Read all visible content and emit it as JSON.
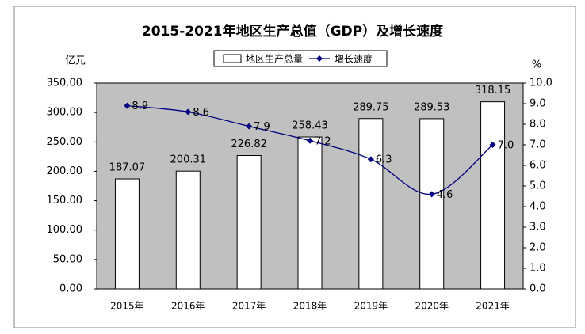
{
  "chart_data": {
    "type": "bar",
    "title": "2015-2021年地区生产总值（GDP）及增长速度",
    "y_label": "亿元",
    "y2_label": "%",
    "categories": [
      "2015年",
      "2016年",
      "2017年",
      "2018年",
      "2019年",
      "2020年",
      "2021年"
    ],
    "series": [
      {
        "name": "地区生产总量",
        "type": "bar",
        "color": "#ffffff",
        "values": [
          187.07,
          200.31,
          226.82,
          258.43,
          289.75,
          289.53,
          318.15
        ]
      },
      {
        "name": "增长速度",
        "type": "line",
        "axis": "y2",
        "color": "#000080",
        "smooth": true,
        "values": [
          8.9,
          8.6,
          7.9,
          7.2,
          6.3,
          4.6,
          7.0
        ],
        "value_labels": [
          "8.9",
          "8.6",
          "7.9",
          "7.2",
          "6.3",
          "4.6",
          "7.0"
        ]
      }
    ],
    "ylim": [
      0,
      350
    ],
    "yticks": [
      {
        "value": 0,
        "label": "0.00"
      },
      {
        "value": 50,
        "label": "50.00"
      },
      {
        "value": 100,
        "label": "100.00"
      },
      {
        "value": 150,
        "label": "150.00"
      },
      {
        "value": 200,
        "label": "200.00"
      },
      {
        "value": 250,
        "label": "250.00"
      },
      {
        "value": 300,
        "label": "300.00"
      },
      {
        "value": 350,
        "label": "350.00"
      }
    ],
    "y2lim": [
      0,
      10
    ],
    "y2ticks": [
      {
        "value": 0,
        "label": "0.0"
      },
      {
        "value": 1,
        "label": "1.0"
      },
      {
        "value": 2,
        "label": "2.0"
      },
      {
        "value": 3,
        "label": "3.0"
      },
      {
        "value": 4,
        "label": "4.0"
      },
      {
        "value": 5,
        "label": "5.0"
      },
      {
        "value": 6,
        "label": "6.0"
      },
      {
        "value": 7,
        "label": "7.0"
      },
      {
        "value": 8,
        "label": "8.0"
      },
      {
        "value": 9,
        "label": "9.0"
      },
      {
        "value": 10,
        "label": "10.0"
      }
    ],
    "plot_background": "#c0c0c0",
    "legend": "top"
  }
}
